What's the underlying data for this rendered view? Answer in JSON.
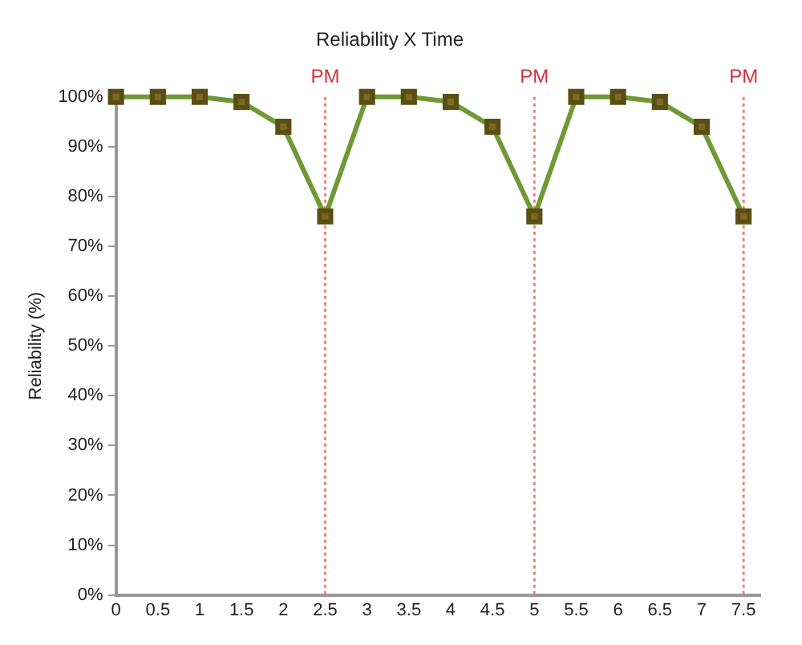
{
  "chart_data": {
    "type": "line",
    "title": "Reliability X Time",
    "ylabel": "Reliability (%)",
    "x": [
      0,
      0.5,
      1,
      1.5,
      2,
      2.5,
      3,
      3.5,
      4,
      4.5,
      5,
      5.5,
      6,
      6.5,
      7,
      7.5
    ],
    "series": [
      {
        "color": "#6e9a35",
        "values": [
          100,
          100,
          100,
          99,
          94,
          76,
          100,
          100,
          99,
          94,
          76,
          100,
          100,
          99,
          94,
          76
        ]
      }
    ],
    "xlim": [
      0,
      7.7
    ],
    "xticks": [
      0,
      0.5,
      1,
      1.5,
      2,
      2.5,
      3,
      3.5,
      4,
      4.5,
      5,
      5.5,
      6,
      6.5,
      7,
      7.5
    ],
    "ylim": [
      0,
      100
    ],
    "yticks": [
      {
        "value": 0,
        "label": "0%"
      },
      {
        "value": 10,
        "label": "10%"
      },
      {
        "value": 20,
        "label": "20%"
      },
      {
        "value": 30,
        "label": "30%"
      },
      {
        "value": 40,
        "label": "40%"
      },
      {
        "value": 50,
        "label": "50%"
      },
      {
        "value": 60,
        "label": "60%"
      },
      {
        "value": 70,
        "label": "70%"
      },
      {
        "value": 80,
        "label": "80%"
      },
      {
        "value": 90,
        "label": "90%"
      },
      {
        "value": 100,
        "label": "100%"
      }
    ],
    "ref_lines": [
      {
        "axis": "x",
        "value": 2.5,
        "label": "PM",
        "color": "#e8857a",
        "line_style": "dotted"
      },
      {
        "axis": "x",
        "value": 5,
        "label": "PM",
        "color": "#e8857a",
        "line_style": "dotted"
      },
      {
        "axis": "x",
        "value": 7.5,
        "label": "PM",
        "color": "#e8857a",
        "line_style": "dotted"
      }
    ],
    "grid": false,
    "legend": false,
    "marker": "square",
    "line_style": "solid"
  }
}
